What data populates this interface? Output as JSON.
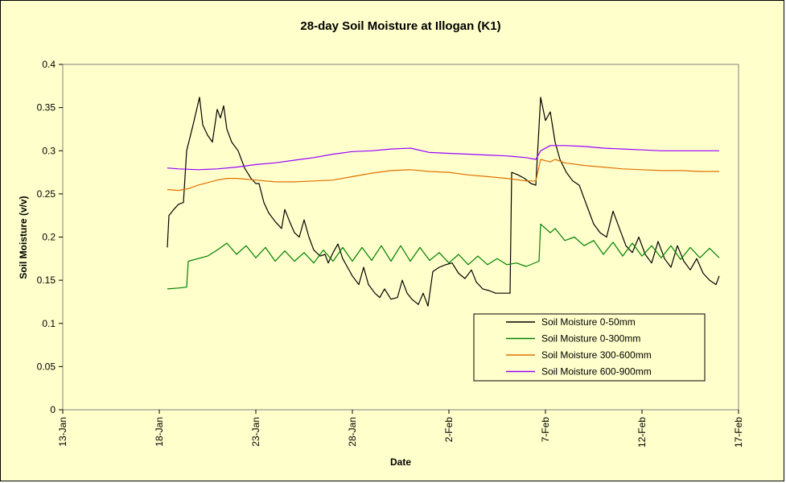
{
  "chart_data": {
    "type": "line",
    "title": "28-day Soil Moisture at Illogan (K1)",
    "xlabel": "Date",
    "ylabel": "Soil Moisture (v/v)",
    "xlim": [
      "2008-01-13",
      "2008-02-17"
    ],
    "ylim": [
      0,
      0.4
    ],
    "x_tick_labels": [
      "13-Jan",
      "18-Jan",
      "23-Jan",
      "28-Jan",
      "2-Feb",
      "7-Feb",
      "12-Feb",
      "17-Feb"
    ],
    "x_ticks": [
      "2008-01-13",
      "2008-01-18",
      "2008-01-23",
      "2008-01-28",
      "2008-02-02",
      "2008-02-07",
      "2008-02-12",
      "2008-02-17"
    ],
    "y_ticks": [
      0,
      0.05,
      0.1,
      0.15,
      0.2,
      0.25,
      0.3,
      0.35,
      0.4
    ],
    "y_tick_labels": [
      "0",
      "0.05",
      "0.1",
      "0.15",
      "0.2",
      "0.25",
      "0.3",
      "0.35",
      "0.4"
    ],
    "grid": false,
    "legend_position": "bottom-right",
    "colors": {
      "background": "#ffffcc",
      "plot_area": "#ffffcc",
      "axis": "#000000"
    },
    "series": [
      {
        "name": "Soil Moisture 0-50mm",
        "color": "#000000",
        "points": [
          [
            "2008-01-18 10:00",
            0.188
          ],
          [
            "2008-01-18 12:00",
            0.225
          ],
          [
            "2008-01-18 18:00",
            0.232
          ],
          [
            "2008-01-19 00:00",
            0.238
          ],
          [
            "2008-01-19 06:00",
            0.24
          ],
          [
            "2008-01-19 10:00",
            0.3
          ],
          [
            "2008-01-19 18:00",
            0.33
          ],
          [
            "2008-01-20 02:00",
            0.362
          ],
          [
            "2008-01-20 06:00",
            0.33
          ],
          [
            "2008-01-20 12:00",
            0.318
          ],
          [
            "2008-01-20 18:00",
            0.31
          ],
          [
            "2008-01-21 00:00",
            0.348
          ],
          [
            "2008-01-21 04:00",
            0.338
          ],
          [
            "2008-01-21 08:00",
            0.352
          ],
          [
            "2008-01-21 12:00",
            0.325
          ],
          [
            "2008-01-21 18:00",
            0.31
          ],
          [
            "2008-01-22 02:00",
            0.3
          ],
          [
            "2008-01-22 10:00",
            0.28
          ],
          [
            "2008-01-22 18:00",
            0.268
          ],
          [
            "2008-01-23 00:00",
            0.262
          ],
          [
            "2008-01-23 04:00",
            0.262
          ],
          [
            "2008-01-23 10:00",
            0.24
          ],
          [
            "2008-01-23 16:00",
            0.228
          ],
          [
            "2008-01-24 00:00",
            0.218
          ],
          [
            "2008-01-24 08:00",
            0.21
          ],
          [
            "2008-01-24 12:00",
            0.232
          ],
          [
            "2008-01-24 18:00",
            0.218
          ],
          [
            "2008-01-25 00:00",
            0.205
          ],
          [
            "2008-01-25 06:00",
            0.2
          ],
          [
            "2008-01-25 12:00",
            0.22
          ],
          [
            "2008-01-25 18:00",
            0.2
          ],
          [
            "2008-01-26 00:00",
            0.185
          ],
          [
            "2008-01-26 08:00",
            0.178
          ],
          [
            "2008-01-26 14:00",
            0.18
          ],
          [
            "2008-01-26 18:00",
            0.17
          ],
          [
            "2008-01-27 00:00",
            0.182
          ],
          [
            "2008-01-27 06:00",
            0.192
          ],
          [
            "2008-01-27 12:00",
            0.175
          ],
          [
            "2008-01-27 18:00",
            0.165
          ],
          [
            "2008-01-28 00:00",
            0.155
          ],
          [
            "2008-01-28 08:00",
            0.145
          ],
          [
            "2008-01-28 14:00",
            0.165
          ],
          [
            "2008-01-28 20:00",
            0.145
          ],
          [
            "2008-01-29 04:00",
            0.135
          ],
          [
            "2008-01-29 10:00",
            0.13
          ],
          [
            "2008-01-29 16:00",
            0.14
          ],
          [
            "2008-01-30 00:00",
            0.128
          ],
          [
            "2008-01-30 08:00",
            0.13
          ],
          [
            "2008-01-30 14:00",
            0.15
          ],
          [
            "2008-01-30 20:00",
            0.135
          ],
          [
            "2008-01-31 02:00",
            0.128
          ],
          [
            "2008-01-31 10:00",
            0.122
          ],
          [
            "2008-01-31 16:00",
            0.135
          ],
          [
            "2008-01-31 22:00",
            0.12
          ],
          [
            "2008-02-01 04:00",
            0.16
          ],
          [
            "2008-02-01 12:00",
            0.165
          ],
          [
            "2008-02-01 20:00",
            0.168
          ],
          [
            "2008-02-02 04:00",
            0.17
          ],
          [
            "2008-02-02 12:00",
            0.158
          ],
          [
            "2008-02-02 20:00",
            0.152
          ],
          [
            "2008-02-03 04:00",
            0.162
          ],
          [
            "2008-02-03 10:00",
            0.148
          ],
          [
            "2008-02-03 18:00",
            0.14
          ],
          [
            "2008-02-04 02:00",
            0.138
          ],
          [
            "2008-02-04 10:00",
            0.135
          ],
          [
            "2008-02-04 18:00",
            0.135
          ],
          [
            "2008-02-05 04:00",
            0.135
          ],
          [
            "2008-02-05 06:00",
            0.275
          ],
          [
            "2008-02-05 14:00",
            0.272
          ],
          [
            "2008-02-05 22:00",
            0.268
          ],
          [
            "2008-02-06 06:00",
            0.262
          ],
          [
            "2008-02-06 12:00",
            0.26
          ],
          [
            "2008-02-06 18:00",
            0.362
          ],
          [
            "2008-02-07 00:00",
            0.335
          ],
          [
            "2008-02-07 06:00",
            0.345
          ],
          [
            "2008-02-07 12:00",
            0.31
          ],
          [
            "2008-02-07 18:00",
            0.29
          ],
          [
            "2008-02-08 02:00",
            0.275
          ],
          [
            "2008-02-08 10:00",
            0.265
          ],
          [
            "2008-02-08 18:00",
            0.26
          ],
          [
            "2008-02-09 04:00",
            0.235
          ],
          [
            "2008-02-09 12:00",
            0.215
          ],
          [
            "2008-02-09 20:00",
            0.205
          ],
          [
            "2008-02-10 04:00",
            0.2
          ],
          [
            "2008-02-10 12:00",
            0.23
          ],
          [
            "2008-02-10 20:00",
            0.21
          ],
          [
            "2008-02-11 04:00",
            0.19
          ],
          [
            "2008-02-11 12:00",
            0.182
          ],
          [
            "2008-02-11 20:00",
            0.2
          ],
          [
            "2008-02-12 04:00",
            0.18
          ],
          [
            "2008-02-12 12:00",
            0.17
          ],
          [
            "2008-02-12 20:00",
            0.195
          ],
          [
            "2008-02-13 04:00",
            0.175
          ],
          [
            "2008-02-13 12:00",
            0.165
          ],
          [
            "2008-02-13 20:00",
            0.19
          ],
          [
            "2008-02-14 04:00",
            0.172
          ],
          [
            "2008-02-14 12:00",
            0.162
          ],
          [
            "2008-02-14 20:00",
            0.175
          ],
          [
            "2008-02-15 04:00",
            0.158
          ],
          [
            "2008-02-15 12:00",
            0.15
          ],
          [
            "2008-02-15 20:00",
            0.145
          ],
          [
            "2008-02-16 00:00",
            0.155
          ]
        ]
      },
      {
        "name": "Soil Moisture 0-300mm",
        "color": "#008000",
        "points": [
          [
            "2008-01-18 10:00",
            0.14
          ],
          [
            "2008-01-19 00:00",
            0.141
          ],
          [
            "2008-01-19 10:00",
            0.142
          ],
          [
            "2008-01-19 12:00",
            0.172
          ],
          [
            "2008-01-20 00:00",
            0.175
          ],
          [
            "2008-01-20 12:00",
            0.178
          ],
          [
            "2008-01-21 00:00",
            0.185
          ],
          [
            "2008-01-21 12:00",
            0.193
          ],
          [
            "2008-01-22 00:00",
            0.18
          ],
          [
            "2008-01-22 12:00",
            0.19
          ],
          [
            "2008-01-23 00:00",
            0.176
          ],
          [
            "2008-01-23 12:00",
            0.188
          ],
          [
            "2008-01-24 00:00",
            0.172
          ],
          [
            "2008-01-24 12:00",
            0.184
          ],
          [
            "2008-01-25 00:00",
            0.172
          ],
          [
            "2008-01-25 12:00",
            0.182
          ],
          [
            "2008-01-26 00:00",
            0.17
          ],
          [
            "2008-01-26 12:00",
            0.185
          ],
          [
            "2008-01-27 00:00",
            0.172
          ],
          [
            "2008-01-27 12:00",
            0.188
          ],
          [
            "2008-01-28 00:00",
            0.172
          ],
          [
            "2008-01-28 12:00",
            0.188
          ],
          [
            "2008-01-29 00:00",
            0.173
          ],
          [
            "2008-01-29 12:00",
            0.19
          ],
          [
            "2008-01-30 00:00",
            0.172
          ],
          [
            "2008-01-30 12:00",
            0.19
          ],
          [
            "2008-01-31 00:00",
            0.172
          ],
          [
            "2008-01-31 12:00",
            0.188
          ],
          [
            "2008-02-01 00:00",
            0.173
          ],
          [
            "2008-02-01 12:00",
            0.182
          ],
          [
            "2008-02-02 00:00",
            0.17
          ],
          [
            "2008-02-02 12:00",
            0.18
          ],
          [
            "2008-02-03 00:00",
            0.168
          ],
          [
            "2008-02-03 12:00",
            0.178
          ],
          [
            "2008-02-04 00:00",
            0.168
          ],
          [
            "2008-02-04 12:00",
            0.175
          ],
          [
            "2008-02-05 00:00",
            0.168
          ],
          [
            "2008-02-05 12:00",
            0.17
          ],
          [
            "2008-02-06 00:00",
            0.166
          ],
          [
            "2008-02-06 16:00",
            0.172
          ],
          [
            "2008-02-06 18:00",
            0.215
          ],
          [
            "2008-02-07 06:00",
            0.205
          ],
          [
            "2008-02-07 12:00",
            0.21
          ],
          [
            "2008-02-08 00:00",
            0.196
          ],
          [
            "2008-02-08 12:00",
            0.2
          ],
          [
            "2008-02-09 00:00",
            0.19
          ],
          [
            "2008-02-09 12:00",
            0.196
          ],
          [
            "2008-02-10 00:00",
            0.18
          ],
          [
            "2008-02-10 12:00",
            0.194
          ],
          [
            "2008-02-11 00:00",
            0.178
          ],
          [
            "2008-02-11 12:00",
            0.193
          ],
          [
            "2008-02-12 00:00",
            0.178
          ],
          [
            "2008-02-12 12:00",
            0.19
          ],
          [
            "2008-02-13 00:00",
            0.176
          ],
          [
            "2008-02-13 12:00",
            0.19
          ],
          [
            "2008-02-14 00:00",
            0.174
          ],
          [
            "2008-02-14 12:00",
            0.188
          ],
          [
            "2008-02-15 00:00",
            0.176
          ],
          [
            "2008-02-15 12:00",
            0.187
          ],
          [
            "2008-02-16 00:00",
            0.176
          ]
        ]
      },
      {
        "name": "Soil Moisture 300-600mm",
        "color": "#e07000",
        "points": [
          [
            "2008-01-18 10:00",
            0.255
          ],
          [
            "2008-01-19 00:00",
            0.254
          ],
          [
            "2008-01-19 12:00",
            0.256
          ],
          [
            "2008-01-20 00:00",
            0.26
          ],
          [
            "2008-01-20 12:00",
            0.263
          ],
          [
            "2008-01-21 00:00",
            0.266
          ],
          [
            "2008-01-21 12:00",
            0.268
          ],
          [
            "2008-01-22 00:00",
            0.268
          ],
          [
            "2008-01-23 00:00",
            0.266
          ],
          [
            "2008-01-24 00:00",
            0.264
          ],
          [
            "2008-01-25 00:00",
            0.264
          ],
          [
            "2008-01-26 00:00",
            0.265
          ],
          [
            "2008-01-27 00:00",
            0.266
          ],
          [
            "2008-01-28 00:00",
            0.27
          ],
          [
            "2008-01-29 00:00",
            0.274
          ],
          [
            "2008-01-30 00:00",
            0.277
          ],
          [
            "2008-01-31 00:00",
            0.278
          ],
          [
            "2008-02-01 00:00",
            0.276
          ],
          [
            "2008-02-02 00:00",
            0.275
          ],
          [
            "2008-02-03 00:00",
            0.272
          ],
          [
            "2008-02-04 00:00",
            0.27
          ],
          [
            "2008-02-05 00:00",
            0.268
          ],
          [
            "2008-02-06 00:00",
            0.265
          ],
          [
            "2008-02-06 12:00",
            0.265
          ],
          [
            "2008-02-06 18:00",
            0.29
          ],
          [
            "2008-02-07 06:00",
            0.287
          ],
          [
            "2008-02-07 12:00",
            0.29
          ],
          [
            "2008-02-08 00:00",
            0.286
          ],
          [
            "2008-02-09 00:00",
            0.283
          ],
          [
            "2008-02-10 00:00",
            0.281
          ],
          [
            "2008-02-11 00:00",
            0.279
          ],
          [
            "2008-02-12 00:00",
            0.278
          ],
          [
            "2008-02-13 00:00",
            0.277
          ],
          [
            "2008-02-14 00:00",
            0.277
          ],
          [
            "2008-02-15 00:00",
            0.276
          ],
          [
            "2008-02-16 00:00",
            0.276
          ]
        ]
      },
      {
        "name": "Soil Moisture 600-900mm",
        "color": "#9900ff",
        "points": [
          [
            "2008-01-18 10:00",
            0.28
          ],
          [
            "2008-01-19 00:00",
            0.279
          ],
          [
            "2008-01-20 00:00",
            0.278
          ],
          [
            "2008-01-21 00:00",
            0.279
          ],
          [
            "2008-01-22 00:00",
            0.281
          ],
          [
            "2008-01-23 00:00",
            0.284
          ],
          [
            "2008-01-24 00:00",
            0.286
          ],
          [
            "2008-01-25 00:00",
            0.289
          ],
          [
            "2008-01-26 00:00",
            0.292
          ],
          [
            "2008-01-27 00:00",
            0.296
          ],
          [
            "2008-01-28 00:00",
            0.299
          ],
          [
            "2008-01-29 00:00",
            0.3
          ],
          [
            "2008-01-30 00:00",
            0.302
          ],
          [
            "2008-01-31 00:00",
            0.303
          ],
          [
            "2008-02-01 00:00",
            0.298
          ],
          [
            "2008-02-02 00:00",
            0.297
          ],
          [
            "2008-02-03 00:00",
            0.296
          ],
          [
            "2008-02-04 00:00",
            0.295
          ],
          [
            "2008-02-05 00:00",
            0.294
          ],
          [
            "2008-02-06 00:00",
            0.292
          ],
          [
            "2008-02-06 12:00",
            0.29
          ],
          [
            "2008-02-06 18:00",
            0.3
          ],
          [
            "2008-02-07 06:00",
            0.306
          ],
          [
            "2008-02-08 00:00",
            0.306
          ],
          [
            "2008-02-09 00:00",
            0.305
          ],
          [
            "2008-02-10 00:00",
            0.303
          ],
          [
            "2008-02-11 00:00",
            0.302
          ],
          [
            "2008-02-12 00:00",
            0.301
          ],
          [
            "2008-02-13 00:00",
            0.3
          ],
          [
            "2008-02-14 00:00",
            0.3
          ],
          [
            "2008-02-15 00:00",
            0.3
          ],
          [
            "2008-02-16 00:00",
            0.3
          ]
        ]
      }
    ]
  }
}
